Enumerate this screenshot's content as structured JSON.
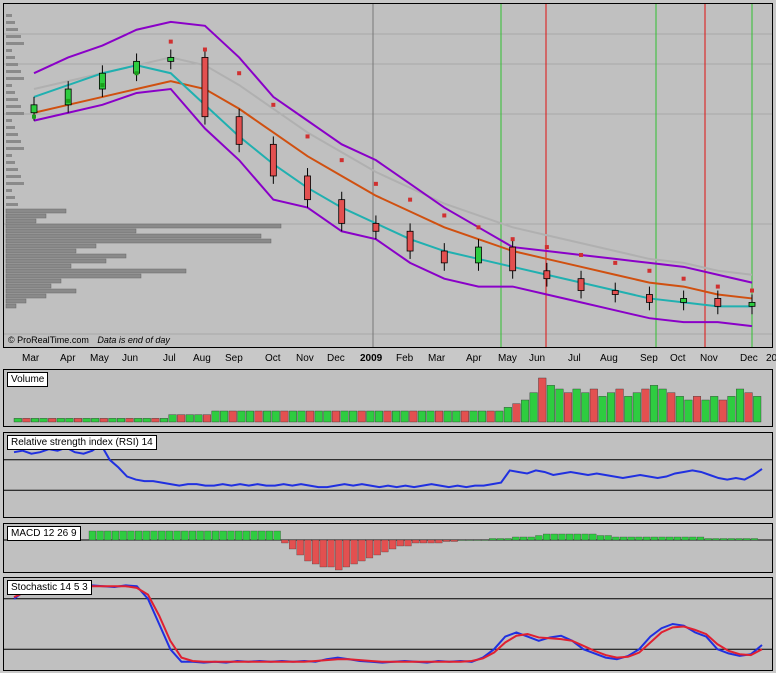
{
  "source_label": "© ProRealTime.com",
  "data_note": "Data is end of day",
  "x_axis": {
    "months": [
      "Mar",
      "Apr",
      "May",
      "Jun",
      "Jul",
      "Aug",
      "Sep",
      "Oct",
      "Nov",
      "Dec",
      "2009",
      "Feb",
      "Mar",
      "Apr",
      "May",
      "Jun",
      "Jul",
      "Aug",
      "Sep",
      "Oct",
      "Nov",
      "Dec",
      "20"
    ]
  },
  "panels": {
    "volume": "Volume",
    "rsi": "Relative strength index (RSI) 14",
    "macd": "MACD 12 26 9",
    "stochastic": "Stochastic 14 5 3"
  },
  "colors": {
    "panel_bg": "#c0c0c0",
    "candle_up": "#2ecc40",
    "candle_down": "#e35050",
    "sar_up": "#1aa01a",
    "sar_down": "#d03030",
    "bollinger": "#8a00c8",
    "ema_short": "#20b0b0",
    "ema_long": "#d05010",
    "ma_slow": "#b0b0b0",
    "rsi_line": "#2030e0",
    "stoch_k": "#2030e0",
    "stoch_d": "#e02030",
    "green_marker": "#30c030",
    "red_marker": "#e01010"
  },
  "chart_data": [
    {
      "type": "candlestick",
      "name": "price",
      "months_index": [
        0,
        1,
        2,
        3,
        4,
        5,
        6,
        7,
        8,
        9,
        10,
        11,
        12,
        13,
        14,
        15,
        16,
        17,
        18,
        19,
        20,
        21
      ],
      "close": [
        58,
        62,
        66,
        69,
        70,
        55,
        48,
        40,
        34,
        28,
        26,
        21,
        18,
        22,
        16,
        14,
        11,
        10,
        8,
        9,
        7,
        8
      ],
      "ema_short": [
        60,
        63,
        66,
        68,
        66,
        58,
        50,
        43,
        37,
        32,
        28,
        24,
        21,
        19,
        17,
        15,
        13,
        11,
        9,
        8,
        7,
        7
      ],
      "ema_long": [
        56,
        58,
        60,
        62,
        64,
        62,
        57,
        51,
        45,
        40,
        35,
        31,
        27,
        24,
        21,
        19,
        17,
        15,
        13,
        12,
        10,
        9
      ],
      "bollinger_upper": [
        66,
        70,
        73,
        77,
        79,
        78,
        70,
        60,
        54,
        48,
        44,
        38,
        32,
        27,
        22,
        21,
        20,
        19,
        18,
        17,
        15,
        13
      ],
      "bollinger_lower": [
        54,
        56,
        58,
        61,
        62,
        52,
        44,
        34,
        32,
        26,
        24,
        18,
        14,
        12,
        12,
        10,
        8,
        6,
        4,
        3,
        3,
        2
      ],
      "sar": [
        55,
        59,
        63,
        66,
        74,
        72,
        66,
        58,
        50,
        44,
        38,
        34,
        30,
        27,
        24,
        22,
        20,
        18,
        16,
        14,
        12,
        11
      ],
      "volume_profile_bars": 20
    },
    {
      "type": "bar",
      "name": "volume",
      "values": [
        1,
        1,
        1,
        1,
        1,
        1,
        1,
        1,
        1,
        1,
        1,
        1,
        1,
        1,
        1,
        1,
        1,
        1,
        2,
        2,
        2,
        2,
        2,
        3,
        3,
        3,
        3,
        3,
        3,
        3,
        3,
        3,
        3,
        3,
        3,
        3,
        3,
        3,
        3,
        3,
        3,
        3,
        3,
        3,
        3,
        3,
        3,
        3,
        3,
        3,
        3,
        3,
        3,
        3,
        3,
        3,
        3,
        4,
        5,
        6,
        8,
        12,
        10,
        9,
        8,
        9,
        8,
        9,
        7,
        8,
        9,
        7,
        8,
        9,
        10,
        9,
        8,
        7,
        6,
        7,
        6,
        7,
        6,
        7,
        9,
        8,
        7
      ]
    },
    {
      "type": "line",
      "name": "rsi",
      "ylim": [
        0,
        100
      ],
      "values": [
        80,
        82,
        78,
        80,
        84,
        82,
        86,
        80,
        78,
        82,
        90,
        70,
        60,
        48,
        44,
        42,
        42,
        40,
        38,
        36,
        38,
        38,
        36,
        36,
        38,
        36,
        38,
        36,
        38,
        36,
        36,
        38,
        36,
        38,
        36,
        34,
        34,
        36,
        38,
        36,
        38,
        36,
        34,
        36,
        34,
        36,
        34,
        36,
        38,
        36,
        34,
        36,
        34,
        36,
        36,
        38,
        40,
        56,
        54,
        52,
        56,
        54,
        50,
        52,
        54,
        52,
        50,
        52,
        50,
        48,
        46,
        48,
        50,
        48,
        46,
        48,
        52,
        54,
        56,
        54,
        50,
        46,
        44,
        46,
        44,
        50,
        58
      ]
    },
    {
      "type": "bar",
      "name": "macd",
      "values": [
        3,
        3,
        3,
        3,
        3,
        3,
        3,
        3,
        3,
        3,
        3,
        3,
        3,
        3,
        3,
        3,
        3,
        3,
        3,
        3,
        3,
        3,
        3,
        3,
        3,
        -1,
        -3,
        -5,
        -7,
        -8,
        -9,
        -9,
        -10,
        -9,
        -8,
        -7,
        -6,
        -5,
        -4,
        -3,
        -2,
        -2,
        -1,
        -1,
        -1,
        -1,
        -0.5,
        -0.5,
        0,
        0,
        0,
        0,
        0.5,
        0.5,
        0.5,
        1,
        1,
        1,
        1.5,
        2,
        2,
        2,
        2,
        2,
        2,
        2,
        1.5,
        1.5,
        1,
        1,
        1,
        1,
        1,
        1,
        1,
        1,
        1,
        1,
        1,
        1,
        0.5,
        0.5,
        0.5,
        0.5,
        0.5,
        0.5,
        0.5
      ]
    },
    {
      "type": "line",
      "name": "stochastic",
      "ylim": [
        0,
        100
      ],
      "series": [
        {
          "key": "k",
          "values": [
            80,
            90,
            92,
            95,
            90,
            92,
            94,
            96,
            95,
            94,
            96,
            95,
            80,
            50,
            20,
            5,
            5,
            4,
            5,
            4,
            6,
            5,
            6,
            5,
            6,
            5,
            6,
            5,
            8,
            10,
            8,
            6,
            5,
            4,
            5,
            6,
            5,
            4,
            6,
            5,
            6,
            5,
            10,
            20,
            35,
            40,
            35,
            30,
            34,
            36,
            30,
            20,
            15,
            10,
            8,
            12,
            20,
            35,
            45,
            50,
            48,
            40,
            35,
            20,
            15,
            12,
            14,
            25
          ]
        },
        {
          "key": "d",
          "values": [
            82,
            88,
            90,
            92,
            92,
            93,
            94,
            95,
            95,
            95,
            95,
            93,
            85,
            60,
            30,
            10,
            6,
            5,
            5,
            5,
            5,
            5,
            5,
            5,
            5,
            5,
            5,
            6,
            7,
            8,
            8,
            7,
            6,
            5,
            5,
            5,
            5,
            5,
            5,
            5,
            5,
            6,
            9,
            16,
            28,
            36,
            38,
            34,
            33,
            32,
            30,
            24,
            18,
            13,
            10,
            11,
            16,
            28,
            40,
            46,
            47,
            43,
            38,
            26,
            18,
            14,
            13,
            20
          ]
        }
      ]
    }
  ]
}
